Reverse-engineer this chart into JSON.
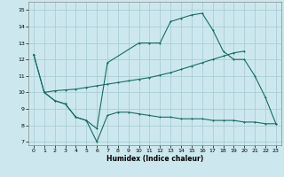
{
  "xlabel": "Humidex (Indice chaleur)",
  "xlim": [
    -0.5,
    23.5
  ],
  "ylim": [
    6.8,
    15.5
  ],
  "yticks": [
    7,
    8,
    9,
    10,
    11,
    12,
    13,
    14,
    15
  ],
  "xticks": [
    0,
    1,
    2,
    3,
    4,
    5,
    6,
    7,
    8,
    9,
    10,
    11,
    12,
    13,
    14,
    15,
    16,
    17,
    18,
    19,
    20,
    21,
    22,
    23
  ],
  "bg_color": "#cce8ee",
  "grid_color": "#aacdd5",
  "line_color": "#1a6b62",
  "line1_x": [
    0,
    1,
    2,
    3,
    4,
    5,
    6,
    7,
    8,
    9,
    10,
    11,
    12,
    13,
    14,
    15,
    16,
    17,
    18,
    19,
    20,
    21,
    22,
    23
  ],
  "line1_y": [
    12.3,
    10.0,
    9.5,
    9.3,
    8.5,
    8.3,
    7.0,
    8.6,
    8.8,
    8.8,
    8.7,
    8.6,
    8.5,
    8.5,
    8.4,
    8.4,
    8.4,
    8.3,
    8.3,
    8.3,
    8.2,
    8.2,
    8.1,
    8.1
  ],
  "line2_x": [
    0,
    1,
    2,
    3,
    4,
    5,
    6,
    7,
    10,
    11,
    12,
    13,
    14,
    15,
    16,
    17,
    18,
    19,
    20,
    21,
    22,
    23
  ],
  "line2_y": [
    12.3,
    10.0,
    9.5,
    9.3,
    8.5,
    8.3,
    7.8,
    11.8,
    13.0,
    13.0,
    13.0,
    14.3,
    14.5,
    14.7,
    14.8,
    13.8,
    12.5,
    12.0,
    12.0,
    11.0,
    9.7,
    8.1
  ],
  "line3_x": [
    1,
    2,
    3,
    4,
    5,
    6,
    7,
    8,
    9,
    10,
    11,
    12,
    13,
    14,
    15,
    16,
    17,
    18,
    19,
    20
  ],
  "line3_y": [
    10.0,
    10.1,
    10.15,
    10.2,
    10.3,
    10.4,
    10.5,
    10.6,
    10.7,
    10.8,
    10.9,
    11.05,
    11.2,
    11.4,
    11.6,
    11.8,
    12.0,
    12.2,
    12.4,
    12.5
  ]
}
